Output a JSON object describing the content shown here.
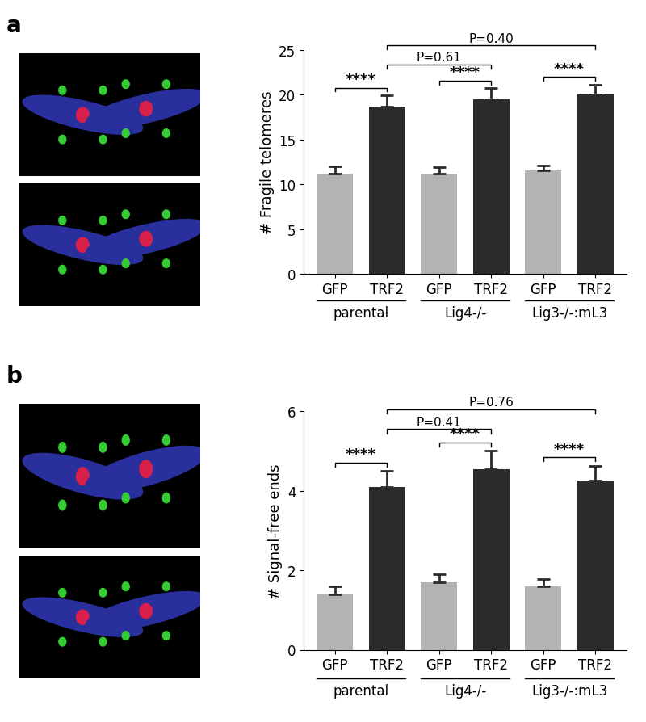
{
  "chart_data": [
    {
      "type": "bar",
      "panel_label": "a",
      "ylabel": "# Fragile telomeres",
      "categories": [
        "GFP",
        "TRF2",
        "GFP",
        "TRF2",
        "GFP",
        "TRF2"
      ],
      "groups": [
        "parental",
        "Lig4-/-",
        "Lig3-/-:mL3"
      ],
      "values": [
        11.2,
        18.7,
        11.2,
        19.5,
        11.5,
        20.0
      ],
      "errors": [
        0.8,
        1.2,
        0.7,
        1.2,
        0.6,
        1.1
      ],
      "colors": [
        "#b3b3b3",
        "#2b2b2b",
        "#b3b3b3",
        "#2b2b2b",
        "#b3b3b3",
        "#2b2b2b"
      ],
      "ylim": [
        0,
        25
      ],
      "yticks": [
        0,
        5,
        10,
        15,
        20,
        25
      ],
      "comparisons": [
        {
          "from": 0,
          "to": 1,
          "label": "****"
        },
        {
          "from": 2,
          "to": 3,
          "label": "****"
        },
        {
          "from": 4,
          "to": 5,
          "label": "****"
        },
        {
          "from": 1,
          "to": 3,
          "label": "P=0.61"
        },
        {
          "from": 1,
          "to": 5,
          "label": "P=0.40"
        }
      ]
    },
    {
      "type": "bar",
      "panel_label": "b",
      "ylabel": "# Signal-free ends",
      "categories": [
        "GFP",
        "TRF2",
        "GFP",
        "TRF2",
        "GFP",
        "TRF2"
      ],
      "groups": [
        "parental",
        "Lig4-/-",
        "Lig3-/-:mL3"
      ],
      "values": [
        1.4,
        4.1,
        1.7,
        4.55,
        1.6,
        4.25
      ],
      "errors": [
        0.2,
        0.4,
        0.2,
        0.45,
        0.18,
        0.38
      ],
      "colors": [
        "#b3b3b3",
        "#2b2b2b",
        "#b3b3b3",
        "#2b2b2b",
        "#b3b3b3",
        "#2b2b2b"
      ],
      "ylim": [
        0,
        6
      ],
      "yticks": [
        0,
        2,
        4,
        6
      ],
      "comparisons": [
        {
          "from": 0,
          "to": 1,
          "label": "****"
        },
        {
          "from": 2,
          "to": 3,
          "label": "****"
        },
        {
          "from": 4,
          "to": 5,
          "label": "****"
        },
        {
          "from": 1,
          "to": 3,
          "label": "P=0.41"
        },
        {
          "from": 1,
          "to": 5,
          "label": "P=0.76"
        }
      ]
    }
  ]
}
